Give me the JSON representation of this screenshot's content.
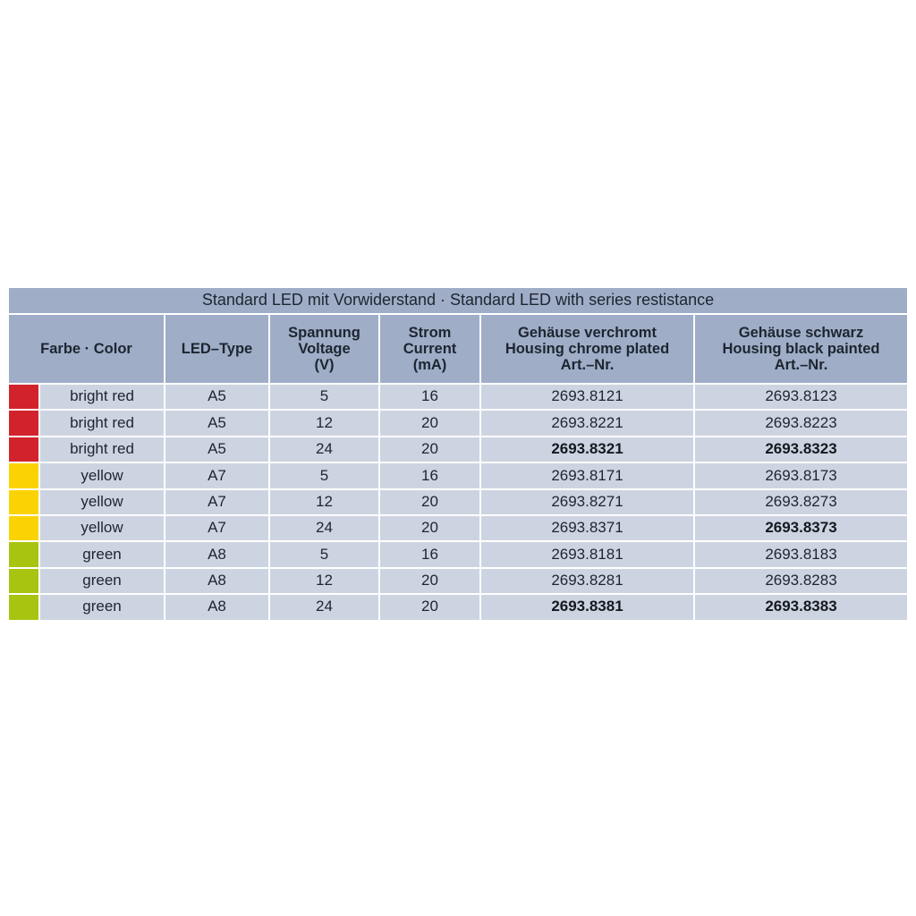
{
  "title": "Standard LED mit Vorwiderstand · Standard LED with series restistance",
  "header": {
    "farbe_color": "Farbe · Color",
    "led_type": "LED–Type",
    "spannung": "Spannung\nVoltage\n(V)",
    "strom": "Strom\nCurrent\n(mA)",
    "chrome": "Gehäuse verchromt\nHousing chrome plated\nArt.–Nr.",
    "black": "Gehäuse schwarz\nHousing black painted\nArt.–Nr."
  },
  "colors": {
    "header_bg": "#9fadc7",
    "row_bg": "#cdd4e1",
    "text": "#1d2530",
    "swatch_red": "#d2232c",
    "swatch_yellow": "#fbd304",
    "swatch_green": "#a9c410"
  },
  "rows": [
    {
      "swatch": "#d2232c",
      "color": "bright red",
      "type": "A5",
      "voltage": "5",
      "current": "16",
      "chrome": "2693.8121",
      "chrome_bold": false,
      "black": "2693.8123",
      "black_bold": false
    },
    {
      "swatch": "#d2232c",
      "color": "bright red",
      "type": "A5",
      "voltage": "12",
      "current": "20",
      "chrome": "2693.8221",
      "chrome_bold": false,
      "black": "2693.8223",
      "black_bold": false
    },
    {
      "swatch": "#d2232c",
      "color": "bright red",
      "type": "A5",
      "voltage": "24",
      "current": "20",
      "chrome": "2693.8321",
      "chrome_bold": true,
      "black": "2693.8323",
      "black_bold": true
    },
    {
      "swatch": "#fbd304",
      "color": "yellow",
      "type": "A7",
      "voltage": "5",
      "current": "16",
      "chrome": "2693.8171",
      "chrome_bold": false,
      "black": "2693.8173",
      "black_bold": false
    },
    {
      "swatch": "#fbd304",
      "color": "yellow",
      "type": "A7",
      "voltage": "12",
      "current": "20",
      "chrome": "2693.8271",
      "chrome_bold": false,
      "black": "2693.8273",
      "black_bold": false
    },
    {
      "swatch": "#fbd304",
      "color": "yellow",
      "type": "A7",
      "voltage": "24",
      "current": "20",
      "chrome": "2693.8371",
      "chrome_bold": false,
      "black": "2693.8373",
      "black_bold": true
    },
    {
      "swatch": "#a9c410",
      "color": "green",
      "type": "A8",
      "voltage": "5",
      "current": "16",
      "chrome": "2693.8181",
      "chrome_bold": false,
      "black": "2693.8183",
      "black_bold": false
    },
    {
      "swatch": "#a9c410",
      "color": "green",
      "type": "A8",
      "voltage": "12",
      "current": "20",
      "chrome": "2693.8281",
      "chrome_bold": false,
      "black": "2693.8283",
      "black_bold": false
    },
    {
      "swatch": "#a9c410",
      "color": "green",
      "type": "A8",
      "voltage": "24",
      "current": "20",
      "chrome": "2693.8381",
      "chrome_bold": true,
      "black": "2693.8383",
      "black_bold": true
    }
  ]
}
